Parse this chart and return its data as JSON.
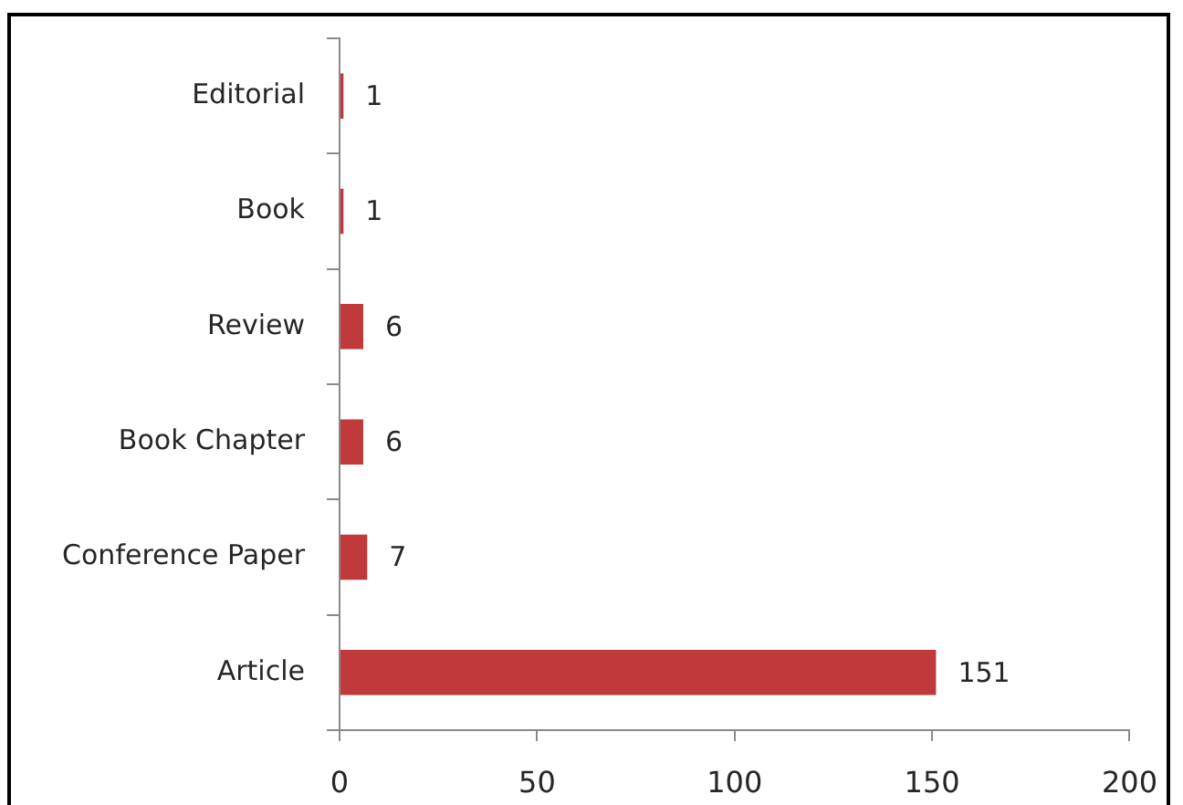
{
  "chart_data": {
    "type": "bar",
    "orientation": "horizontal",
    "categories": [
      "Editorial",
      "Book",
      "Review",
      "Book Chapter",
      "Conference Paper",
      "Article"
    ],
    "values": [
      1,
      1,
      6,
      6,
      7,
      151
    ],
    "color": "#c0393b",
    "xlim": [
      0,
      200
    ],
    "xticks": [
      0,
      50,
      100,
      150,
      200
    ],
    "data_labels": true
  }
}
